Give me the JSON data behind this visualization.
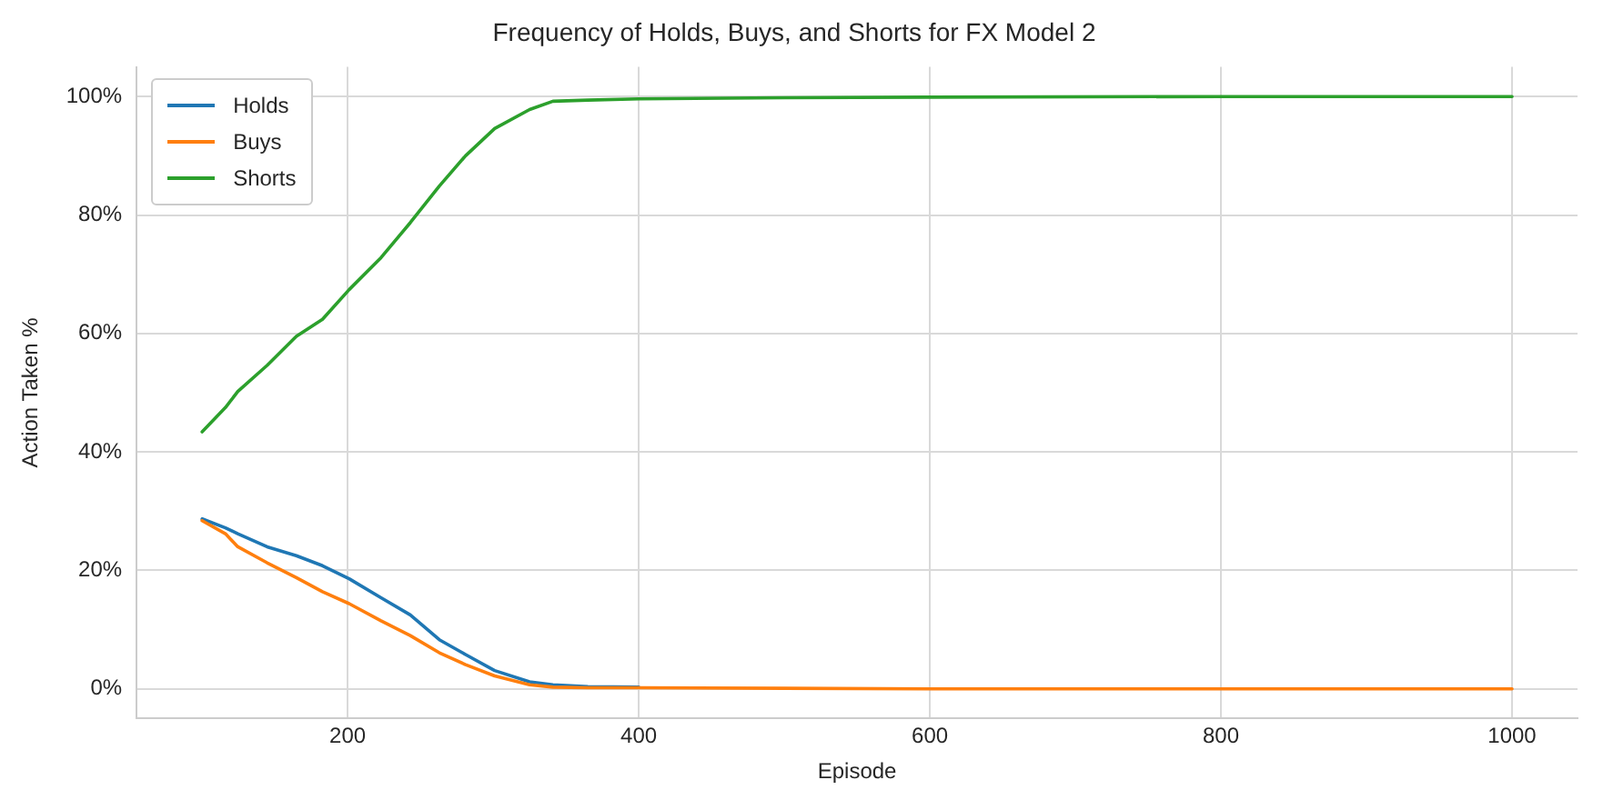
{
  "chart_data": {
    "type": "line",
    "title": "Frequency of Holds, Buys, and Shorts for FX Model 2",
    "xlabel": "Episode",
    "ylabel": "Action Taken %",
    "x": [
      100,
      116,
      124.5,
      144.6,
      164.7,
      182.7,
      201,
      222.9,
      243,
      263,
      281,
      301,
      325,
      341,
      365,
      400,
      500,
      600,
      800,
      1000
    ],
    "series": [
      {
        "name": "Holds",
        "color": "#1f77b4",
        "values": [
          28.7,
          27.2,
          26.2,
          24.0,
          22.5,
          20.8,
          18.6,
          15.4,
          12.5,
          8.3,
          5.8,
          3.1,
          1.2,
          0.7,
          0.4,
          0.3,
          null,
          null,
          null,
          null
        ]
      },
      {
        "name": "Buys",
        "color": "#ff7f0e",
        "values": [
          28.4,
          26.2,
          24.0,
          21.3,
          18.8,
          16.4,
          14.4,
          11.5,
          9.0,
          6.1,
          4.1,
          2.2,
          0.7,
          0.3,
          0.2,
          0.2,
          0.1,
          0,
          0,
          0
        ]
      },
      {
        "name": "Shorts",
        "color": "#2ca02c",
        "values": [
          43.4,
          47.5,
          50.2,
          54.6,
          59.5,
          62.4,
          67.4,
          72.8,
          78.7,
          84.9,
          90.0,
          94.6,
          97.8,
          99.2,
          99.4,
          99.6,
          99.8,
          99.9,
          100,
          100
        ]
      }
    ],
    "xlim": [
      55,
      1045
    ],
    "xticks": [
      200,
      400,
      600,
      800,
      1000
    ],
    "ylim": [
      -5,
      105
    ],
    "yticks": [
      {
        "value": 0,
        "label": "0%"
      },
      {
        "value": 20,
        "label": "20%"
      },
      {
        "value": 40,
        "label": "40%"
      },
      {
        "value": 60,
        "label": "60%"
      },
      {
        "value": 80,
        "label": "80%"
      },
      {
        "value": 100,
        "label": "100%"
      }
    ],
    "grid": true,
    "legend": "top left",
    "marker": "none",
    "line_style": "solid"
  }
}
